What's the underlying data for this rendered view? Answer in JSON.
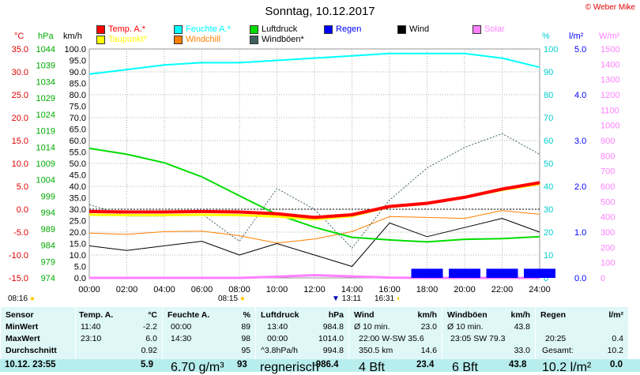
{
  "title": "Sonntag, 10.12.2017",
  "credit": "© Weber Mike",
  "legend": [
    {
      "label": "Temp. A.*",
      "color": "#ff0000",
      "col": 0,
      "row": 0
    },
    {
      "label": "Taupunkt*",
      "color": "#ffff00",
      "col": 0,
      "row": 1
    },
    {
      "label": "Feuchte A.*",
      "color": "#00ffff",
      "col": 1,
      "row": 0
    },
    {
      "label": "Windchill",
      "color": "#ff8000",
      "col": 1,
      "row": 1
    },
    {
      "label": "Luftdruck",
      "color": "#00dd00",
      "col": 2,
      "row": 0
    },
    {
      "label": "Windböen*",
      "color": "#406060",
      "col": 2,
      "row": 1
    },
    {
      "label": "Regen",
      "color": "#0000ff",
      "col": 3,
      "row": 0
    },
    {
      "label": "Wind",
      "color": "#000000",
      "col": 4,
      "row": 0
    },
    {
      "label": "Solar",
      "color": "#ff80ff",
      "col": 5,
      "row": 0
    }
  ],
  "axis_headers": {
    "c": "°C",
    "hpa": "hPa",
    "kmh": "km/h",
    "pct": "%",
    "lm2": "l/m²",
    "wm2": "W/m²"
  },
  "colors": {
    "temp": "#ff0000",
    "dew": "#ffff00",
    "hum": "#00ffff",
    "chill": "#ff8000",
    "press": "#00dd00",
    "gust": "#406060",
    "rain": "#0000ff",
    "wind": "#000000",
    "solar": "#ff80ff"
  },
  "axes": {
    "c_ticks": [
      "35.0",
      "30.0",
      "25.0",
      "20.0",
      "15.0",
      "10.0",
      "5.0",
      "0.0",
      "-5.0",
      "-10.0",
      "-15.0"
    ],
    "hpa_ticks": [
      "1044",
      "1039",
      "1034",
      "1029",
      "1024",
      "1019",
      "1014",
      "1009",
      "1004",
      "999",
      "994",
      "989",
      "984",
      "979",
      "974"
    ],
    "kmh_ticks": [
      "100.0",
      "95.0",
      "90.0",
      "85.0",
      "80.0",
      "75.0",
      "70.0",
      "65.0",
      "60.0",
      "55.0",
      "50.0",
      "45.0",
      "40.0",
      "35.0",
      "30.0",
      "25.0",
      "20.0",
      "15.0",
      "10.0",
      "5.0",
      "0.0"
    ],
    "pct_ticks": [
      "100",
      "90",
      "80",
      "70",
      "60",
      "50",
      "40",
      "30",
      "20",
      "10",
      "0"
    ],
    "lm2_ticks": [
      "5.0",
      "4.0",
      "3.0",
      "2.0",
      "1.0",
      "0.0"
    ],
    "wm2_ticks": [
      "1500",
      "1400",
      "1300",
      "1200",
      "1100",
      "1000",
      "900",
      "800",
      "700",
      "600",
      "500",
      "400",
      "300",
      "200",
      "100",
      "0"
    ],
    "x_ticks": [
      "00:00",
      "02:00",
      "04:00",
      "06:00",
      "08:00",
      "10:00",
      "12:00",
      "14:00",
      "16:00",
      "18:00",
      "20:00",
      "22:00",
      "24:00"
    ]
  },
  "sun": {
    "sunrise": "08:16",
    "sunrise_plot": "08:15",
    "noon": "13:11",
    "sunset": "16:31"
  },
  "chart_data": {
    "type": "line",
    "x": [
      "00:00",
      "02:00",
      "04:00",
      "06:00",
      "08:00",
      "10:00",
      "12:00",
      "14:00",
      "16:00",
      "18:00",
      "20:00",
      "22:00",
      "24:00"
    ],
    "series": [
      {
        "name": "Temp. A.*",
        "axis": "°C",
        "values": [
          -0.5,
          -0.6,
          -0.6,
          -0.5,
          -0.6,
          -1.0,
          -1.8,
          -1.2,
          0.6,
          1.3,
          2.6,
          4.4,
          5.8
        ]
      },
      {
        "name": "Taupunkt*",
        "axis": "°C",
        "values": [
          -1.2,
          -1.3,
          -1.3,
          -1.2,
          -1.3,
          -1.6,
          -2.2,
          -1.5,
          0.5,
          1.2,
          2.6,
          4.2,
          5.5
        ]
      },
      {
        "name": "Feuchte A.*",
        "axis": "%",
        "values": [
          89,
          91,
          93,
          94,
          94,
          95,
          96,
          97,
          98,
          98,
          98,
          96,
          92
        ]
      },
      {
        "name": "Luftdruck",
        "axis": "hPa",
        "values": [
          1013.6,
          1011.8,
          1009.2,
          1004.9,
          999.1,
          993.4,
          989.5,
          986.4,
          985.6,
          985.0,
          985.8,
          986.0,
          986.6
        ]
      },
      {
        "name": "Wind",
        "axis": "km/h",
        "values": [
          14,
          12,
          14,
          16,
          10,
          15,
          10,
          5,
          24,
          18,
          22,
          26,
          20
        ]
      },
      {
        "name": "Windböen*",
        "axis": "km/h",
        "values": [
          32,
          27,
          27,
          28,
          16,
          39,
          30,
          13,
          34,
          48,
          57,
          63,
          54
        ]
      },
      {
        "name": "Windchill",
        "axis": "°C",
        "values": [
          -5.2,
          -5.5,
          -4.9,
          -4.8,
          -5.8,
          -7.4,
          -6.5,
          -4.9,
          -1.6,
          -1.8,
          -2.0,
          -0.3,
          -1.1
        ]
      },
      {
        "name": "Solar",
        "axis": "W/m²",
        "values": [
          0,
          0,
          0,
          0,
          0,
          8,
          18,
          10,
          2,
          0,
          0,
          0,
          0
        ]
      },
      {
        "name": "Regen",
        "axis": "l/m²",
        "values": [
          0,
          0,
          0,
          0,
          0,
          0,
          0,
          0,
          0,
          0.2,
          0.2,
          0.2,
          0.2
        ]
      }
    ]
  },
  "table": {
    "sensor": {
      "header": "Sensor",
      "rows": [
        "MinWert",
        "MaxWert",
        "Durchschnitt"
      ],
      "footer": "10.12. 23:55"
    },
    "temp": {
      "header": "Temp. A.",
      "unit": "°C",
      "rows": [
        [
          "11:40",
          "-2.2"
        ],
        [
          "23:10",
          "6.0"
        ],
        [
          "",
          "0.92"
        ]
      ],
      "footer": "5.9"
    },
    "hum": {
      "header": "Feuchte A.",
      "unit": "%",
      "rows": [
        [
          "00:00",
          "89"
        ],
        [
          "14:30",
          "98"
        ],
        [
          "",
          "95"
        ]
      ],
      "footer_l": "6.70 g/m³",
      "footer": "93"
    },
    "press": {
      "header": "Luftdruck",
      "unit": "hPa",
      "rows": [
        [
          "13:40",
          "984.8"
        ],
        [
          "00:00",
          "1014.0"
        ],
        [
          "^3.8hPa/h",
          "994.8"
        ]
      ],
      "footer_l": "regnerisch",
      "footer": "↑986.4"
    },
    "wind": {
      "header": "Wind",
      "unit": "km/h",
      "rows": [
        [
          "Ø 10 min.",
          "23.0"
        ],
        [
          "22:00   W-SW 35.6",
          ""
        ],
        [
          "350.5 km",
          "14.6"
        ]
      ],
      "footer_l": "4 Bft",
      "footer": "23.4"
    },
    "gust": {
      "header": "Windböen",
      "unit": "km/h",
      "rows": [
        [
          "Ø 10 min.",
          "43.8"
        ],
        [
          "23:05     SW 79.3",
          ""
        ],
        [
          "",
          "33.0"
        ]
      ],
      "footer_l": "6 Bft",
      "footer": "43.8"
    },
    "rain": {
      "header": "Regen",
      "unit": "l/m²",
      "rows": [
        [
          "",
          ""
        ],
        [
          "20:25",
          "0.4"
        ],
        [
          "Gesamt:",
          "10.2"
        ]
      ],
      "footer_l": "10.2 l/m²",
      "footer": "0.0"
    }
  }
}
